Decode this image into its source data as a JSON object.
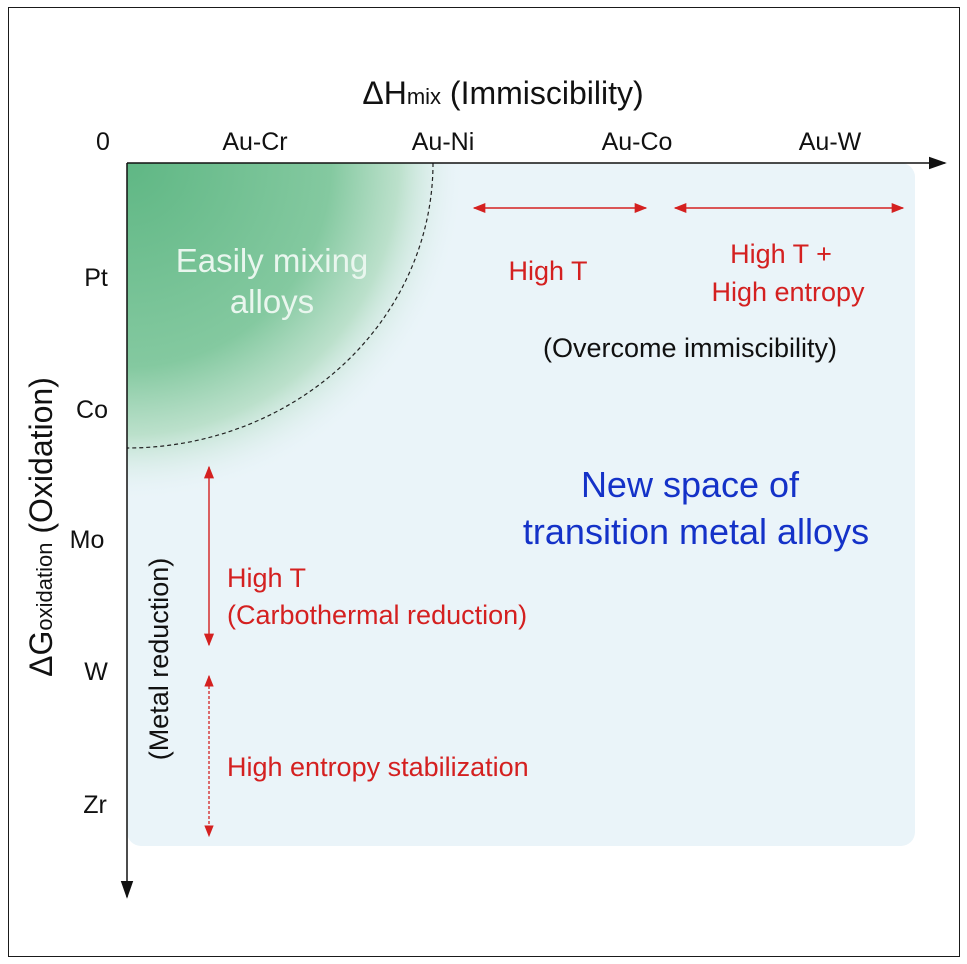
{
  "axes": {
    "x_title_symbol": "ΔH",
    "x_title_sub": "mix",
    "x_title_rest": "(Immiscibility)",
    "y_title_symbol": "ΔG",
    "y_title_sub": "oxidation",
    "y_title_rest": "(Oxidation)",
    "origin_label": "0",
    "x_ticks": [
      "Au-Cr",
      "Au-Ni",
      "Au-Co",
      "Au-W"
    ],
    "y_ticks": [
      "Pt",
      "Co",
      "Mo",
      "W",
      "Zr"
    ]
  },
  "regions": {
    "easy_mixing_line1": "Easily mixing",
    "easy_mixing_line2": "alloys",
    "new_space_line1": "New space of",
    "new_space_line2": "transition metal alloys"
  },
  "annotations": {
    "high_t_x": "High T",
    "high_t_entropy_line1": "High T +",
    "high_t_entropy_line2": "High entropy",
    "overcome": "(Overcome immiscibility)",
    "metal_reduction": "(Metal reduction)",
    "high_t_y_line1": "High T",
    "high_t_y_line2": "(Carbothermal reduction)",
    "high_entropy_stab": "High entropy stabilization"
  },
  "colors": {
    "accent_red": "#d42020",
    "accent_blue": "#1432c8",
    "green": "#7fc69c",
    "light_blue": "#eaf4f9"
  }
}
